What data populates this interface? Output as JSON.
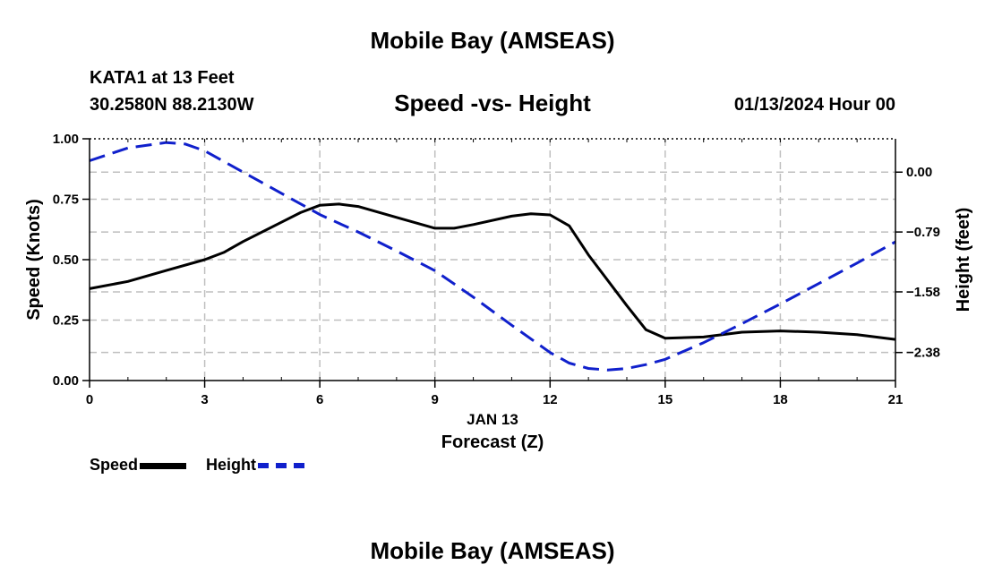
{
  "header": {
    "title": "Mobile Bay (AMSEAS)",
    "station": "KATA1 at 13 Feet",
    "coordinates": "30.2580N  88.2130W",
    "subtitle": "Speed -vs- Height",
    "datetime": "01/13/2024 Hour 00"
  },
  "footer": {
    "title": "Mobile Bay (AMSEAS)"
  },
  "legend": {
    "speed_label": "Speed",
    "height_label": "Height"
  },
  "chart_data": {
    "type": "line",
    "title": "Speed -vs- Height",
    "xlabel": "Forecast (Z)",
    "xdate_label": "JAN 13",
    "x_ticks": [
      0,
      3,
      6,
      9,
      12,
      15,
      18,
      21
    ],
    "xlim": [
      0,
      21
    ],
    "ylabel_left": "Speed (Knots)",
    "ylim_left": [
      0,
      1
    ],
    "y_ticks_left": [
      "0.00",
      "0.25",
      "0.50",
      "0.75",
      "1.00"
    ],
    "ylabel_right": "Height (feet)",
    "ylim_right": [
      -2.75,
      0.44
    ],
    "y_ticks_right": [
      {
        "value": 0.0,
        "label": "0.00"
      },
      {
        "value": -0.79,
        "label": "−0.79"
      },
      {
        "value": -1.58,
        "label": "−1.58"
      },
      {
        "value": -2.38,
        "label": "−2.38"
      }
    ],
    "grid": true,
    "series": [
      {
        "name": "Speed",
        "axis": "left",
        "color": "#000000",
        "style": "solid",
        "x": [
          0,
          1,
          2,
          3,
          3.5,
          4,
          5,
          5.5,
          6,
          6.5,
          7,
          8,
          9,
          9.5,
          10,
          11,
          11.5,
          12,
          12.5,
          13,
          14,
          14.5,
          15,
          16,
          17,
          18,
          19,
          20,
          21
        ],
        "values": [
          0.38,
          0.41,
          0.455,
          0.5,
          0.53,
          0.575,
          0.655,
          0.695,
          0.725,
          0.73,
          0.72,
          0.675,
          0.63,
          0.63,
          0.645,
          0.68,
          0.69,
          0.685,
          0.64,
          0.52,
          0.31,
          0.21,
          0.175,
          0.18,
          0.2,
          0.205,
          0.2,
          0.19,
          0.17
        ]
      },
      {
        "name": "Height",
        "axis": "right",
        "color": "#1020cc",
        "style": "dashed",
        "x": [
          0,
          1,
          2,
          2.5,
          3,
          4,
          5,
          6,
          7,
          8,
          9,
          10,
          11,
          12,
          12.5,
          13,
          13.5,
          14,
          14.5,
          15,
          16,
          17,
          18,
          19,
          20,
          21
        ],
        "values": [
          0.15,
          0.32,
          0.39,
          0.37,
          0.28,
          0.0,
          -0.28,
          -0.56,
          -0.79,
          -1.04,
          -1.3,
          -1.65,
          -2.02,
          -2.38,
          -2.52,
          -2.59,
          -2.61,
          -2.59,
          -2.54,
          -2.47,
          -2.25,
          -2.0,
          -1.74,
          -1.47,
          -1.2,
          -0.92
        ]
      }
    ]
  }
}
